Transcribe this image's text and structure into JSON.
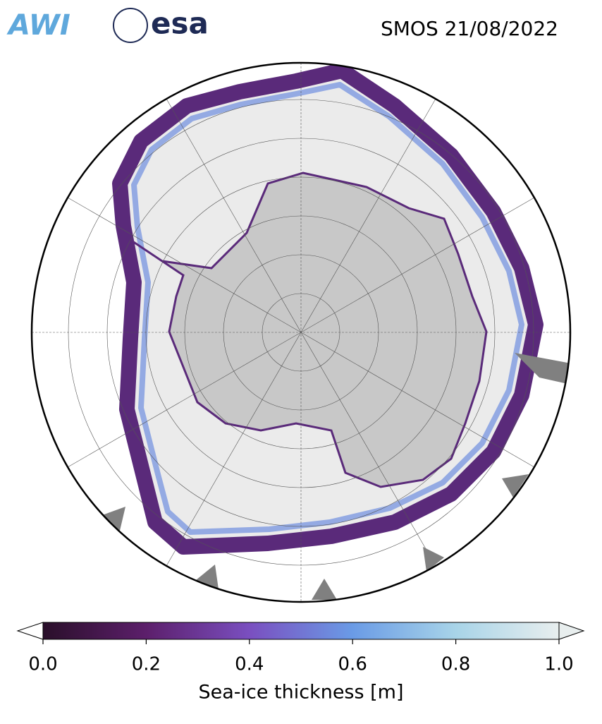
{
  "header": {
    "title": "SMOS 21/08/2022",
    "logos": [
      "AWI",
      "esa"
    ]
  },
  "colorbar": {
    "label": "Sea-ice thickness [m]",
    "lim": [
      0,
      1
    ],
    "ticks": [
      {
        "value": 0,
        "label": "0.0"
      },
      {
        "value": 0.2,
        "label": "0.2"
      },
      {
        "value": 0.4,
        "label": "0.4"
      },
      {
        "value": 0.6,
        "label": "0.6"
      },
      {
        "value": 0.8,
        "label": "0.8"
      },
      {
        "value": 1,
        "label": "1.0"
      }
    ],
    "colors": [
      "#2a0f2a",
      "#5c1f6b",
      "#7a4fc0",
      "#6a9be6",
      "#a8d4e8",
      "#e8eeee"
    ]
  }
}
